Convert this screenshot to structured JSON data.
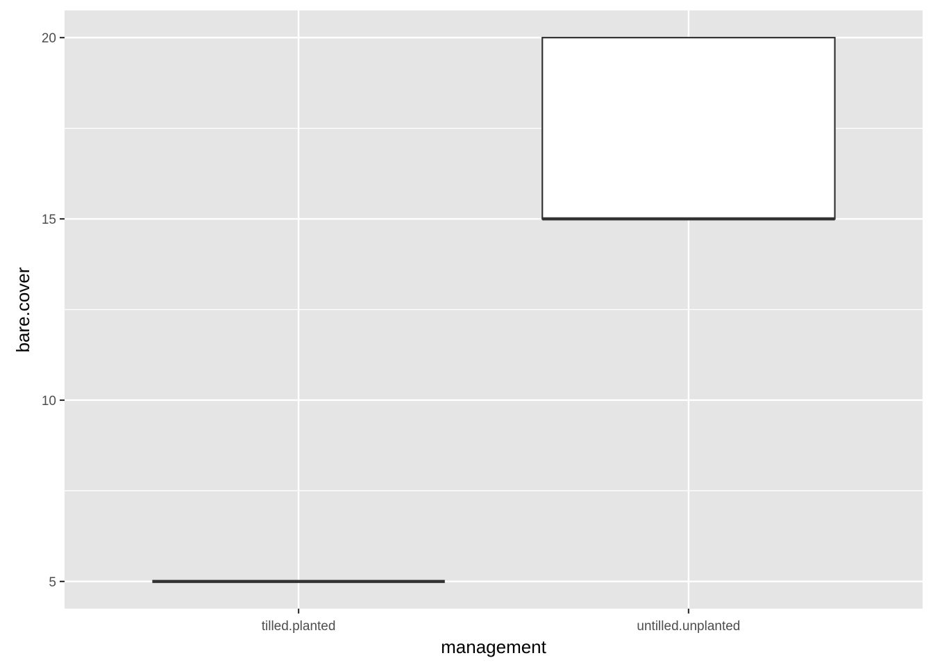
{
  "chart_data": {
    "type": "boxplot",
    "title": "",
    "xlabel": "management",
    "ylabel": "bare.cover",
    "categories": [
      "tilled.planted",
      "untilled.unplanted"
    ],
    "boxes": [
      {
        "category": "tilled.planted",
        "min": 5,
        "q1": 5,
        "median": 5,
        "q3": 5,
        "max": 5
      },
      {
        "category": "untilled.unplanted",
        "min": 15,
        "q1": 15,
        "median": 15,
        "q3": 20,
        "max": 20
      }
    ],
    "ylim": [
      4.25,
      20.75
    ],
    "yticks": [
      5,
      10,
      15,
      20
    ],
    "yticks_minor": [
      7.5,
      12.5,
      17.5
    ],
    "ytick_labels": [
      "5",
      "10",
      "15",
      "20"
    ],
    "grid": true,
    "legend": "none",
    "colors": {
      "panel_background": "#e5e5e5",
      "grid_line": "#ffffff",
      "box_fill": "#ffffff",
      "box_outline": "#333333",
      "tick_mark": "#333333"
    }
  }
}
